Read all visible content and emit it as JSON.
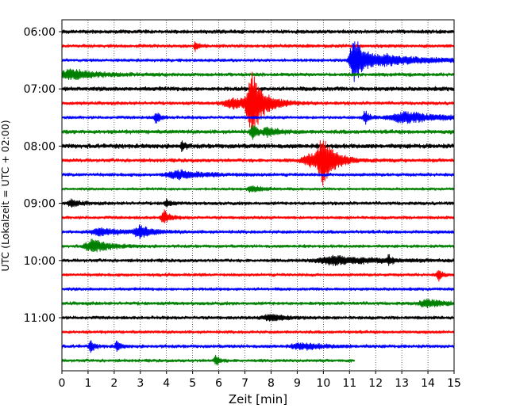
{
  "chart_data": {
    "type": "line",
    "title": "",
    "xlabel": "Zeit  [min]",
    "ylabel": "UTC (Lokalzeit = UTC + 02:00)",
    "xlim": [
      0,
      15
    ],
    "x_ticks": [
      "0",
      "1",
      "2",
      "3",
      "4",
      "5",
      "6",
      "7",
      "8",
      "9",
      "10",
      "11",
      "12",
      "13",
      "14",
      "15"
    ],
    "y_ticks": [
      "06:00",
      "07:00",
      "08:00",
      "09:00",
      "10:00",
      "11:00"
    ],
    "grid": "vertical dotted at each minute",
    "trace_interval_min": 15,
    "start_time": "06:00",
    "colors_cycle": [
      "#000000",
      "#ff0000",
      "#0000ff",
      "#008000"
    ],
    "traces": [
      {
        "time": "06:00",
        "color": "#000000",
        "amp": 0.15,
        "end": 15,
        "events": []
      },
      {
        "time": "06:15",
        "color": "#ff0000",
        "amp": 0.13,
        "end": 15,
        "events": [
          {
            "t": 5.1,
            "a": 0.55,
            "d": 0.1
          }
        ]
      },
      {
        "time": "06:30",
        "color": "#0000ff",
        "amp": 0.12,
        "end": 15,
        "events": [
          {
            "t": 11.2,
            "a": 2.3,
            "d": 0.35
          },
          {
            "t": 12.5,
            "a": 0.45,
            "d": 1.6
          }
        ]
      },
      {
        "time": "06:45",
        "color": "#008000",
        "amp": 0.14,
        "end": 15,
        "events": [
          {
            "t": 0.4,
            "a": 0.45,
            "d": 0.9
          }
        ]
      },
      {
        "time": "07:00",
        "color": "#000000",
        "amp": 0.17,
        "end": 15,
        "events": []
      },
      {
        "time": "07:15",
        "color": "#ff0000",
        "amp": 0.13,
        "end": 15,
        "events": [
          {
            "t": 7.3,
            "a": 2.7,
            "d": 0.45
          },
          {
            "t": 6.6,
            "a": 0.45,
            "d": 0.8
          }
        ]
      },
      {
        "time": "07:30",
        "color": "#0000ff",
        "amp": 0.12,
        "end": 15,
        "events": [
          {
            "t": 3.6,
            "a": 0.6,
            "d": 0.15
          },
          {
            "t": 11.6,
            "a": 0.7,
            "d": 0.15
          },
          {
            "t": 13.2,
            "a": 0.5,
            "d": 1.2
          }
        ]
      },
      {
        "time": "07:45",
        "color": "#008000",
        "amp": 0.16,
        "end": 15,
        "events": [
          {
            "t": 7.3,
            "a": 0.6,
            "d": 0.2
          },
          {
            "t": 7.9,
            "a": 0.35,
            "d": 0.4
          }
        ]
      },
      {
        "time": "08:00",
        "color": "#000000",
        "amp": 0.18,
        "end": 15,
        "events": [
          {
            "t": 4.6,
            "a": 0.5,
            "d": 0.1
          }
        ]
      },
      {
        "time": "08:15",
        "color": "#ff0000",
        "amp": 0.14,
        "end": 15,
        "events": [
          {
            "t": 10.0,
            "a": 2.3,
            "d": 0.4
          },
          {
            "t": 9.5,
            "a": 0.55,
            "d": 0.6
          }
        ]
      },
      {
        "time": "08:30",
        "color": "#0000ff",
        "amp": 0.13,
        "end": 15,
        "events": [
          {
            "t": 4.5,
            "a": 0.35,
            "d": 0.9
          }
        ]
      },
      {
        "time": "08:45",
        "color": "#008000",
        "amp": 0.11,
        "end": 15,
        "events": [
          {
            "t": 7.3,
            "a": 0.3,
            "d": 0.4
          }
        ]
      },
      {
        "time": "09:00",
        "color": "#000000",
        "amp": 0.13,
        "end": 15,
        "events": [
          {
            "t": 0.4,
            "a": 0.3,
            "d": 0.3
          },
          {
            "t": 4.0,
            "a": 0.35,
            "d": 0.15
          }
        ]
      },
      {
        "time": "09:15",
        "color": "#ff0000",
        "amp": 0.12,
        "end": 15,
        "events": [
          {
            "t": 3.9,
            "a": 0.7,
            "d": 0.2
          }
        ]
      },
      {
        "time": "09:30",
        "color": "#0000ff",
        "amp": 0.13,
        "end": 15,
        "events": [
          {
            "t": 3.0,
            "a": 0.55,
            "d": 0.4
          },
          {
            "t": 1.5,
            "a": 0.3,
            "d": 0.8
          }
        ]
      },
      {
        "time": "09:45",
        "color": "#008000",
        "amp": 0.12,
        "end": 15,
        "events": [
          {
            "t": 1.2,
            "a": 0.6,
            "d": 0.6
          }
        ]
      },
      {
        "time": "10:00",
        "color": "#000000",
        "amp": 0.13,
        "end": 15,
        "events": [
          {
            "t": 10.5,
            "a": 0.4,
            "d": 1.4
          },
          {
            "t": 12.5,
            "a": 0.45,
            "d": 0.1
          }
        ]
      },
      {
        "time": "10:15",
        "color": "#ff0000",
        "amp": 0.12,
        "end": 15,
        "events": [
          {
            "t": 14.4,
            "a": 0.55,
            "d": 0.15
          }
        ]
      },
      {
        "time": "10:30",
        "color": "#0000ff",
        "amp": 0.12,
        "end": 15,
        "events": []
      },
      {
        "time": "10:45",
        "color": "#008000",
        "amp": 0.13,
        "end": 15,
        "events": [
          {
            "t": 14.0,
            "a": 0.35,
            "d": 0.6
          }
        ]
      },
      {
        "time": "11:00",
        "color": "#000000",
        "amp": 0.13,
        "end": 15,
        "events": [
          {
            "t": 8.0,
            "a": 0.3,
            "d": 0.6
          }
        ]
      },
      {
        "time": "11:15",
        "color": "#ff0000",
        "amp": 0.12,
        "end": 15,
        "events": []
      },
      {
        "time": "11:30",
        "color": "#0000ff",
        "amp": 0.13,
        "end": 15,
        "events": [
          {
            "t": 1.1,
            "a": 0.5,
            "d": 0.15
          },
          {
            "t": 2.1,
            "a": 0.45,
            "d": 0.15
          },
          {
            "t": 9.2,
            "a": 0.3,
            "d": 0.7
          }
        ]
      },
      {
        "time": "11:45",
        "color": "#008000",
        "amp": 0.12,
        "end": 11.2,
        "events": [
          {
            "t": 5.9,
            "a": 0.45,
            "d": 0.15
          }
        ]
      }
    ]
  }
}
